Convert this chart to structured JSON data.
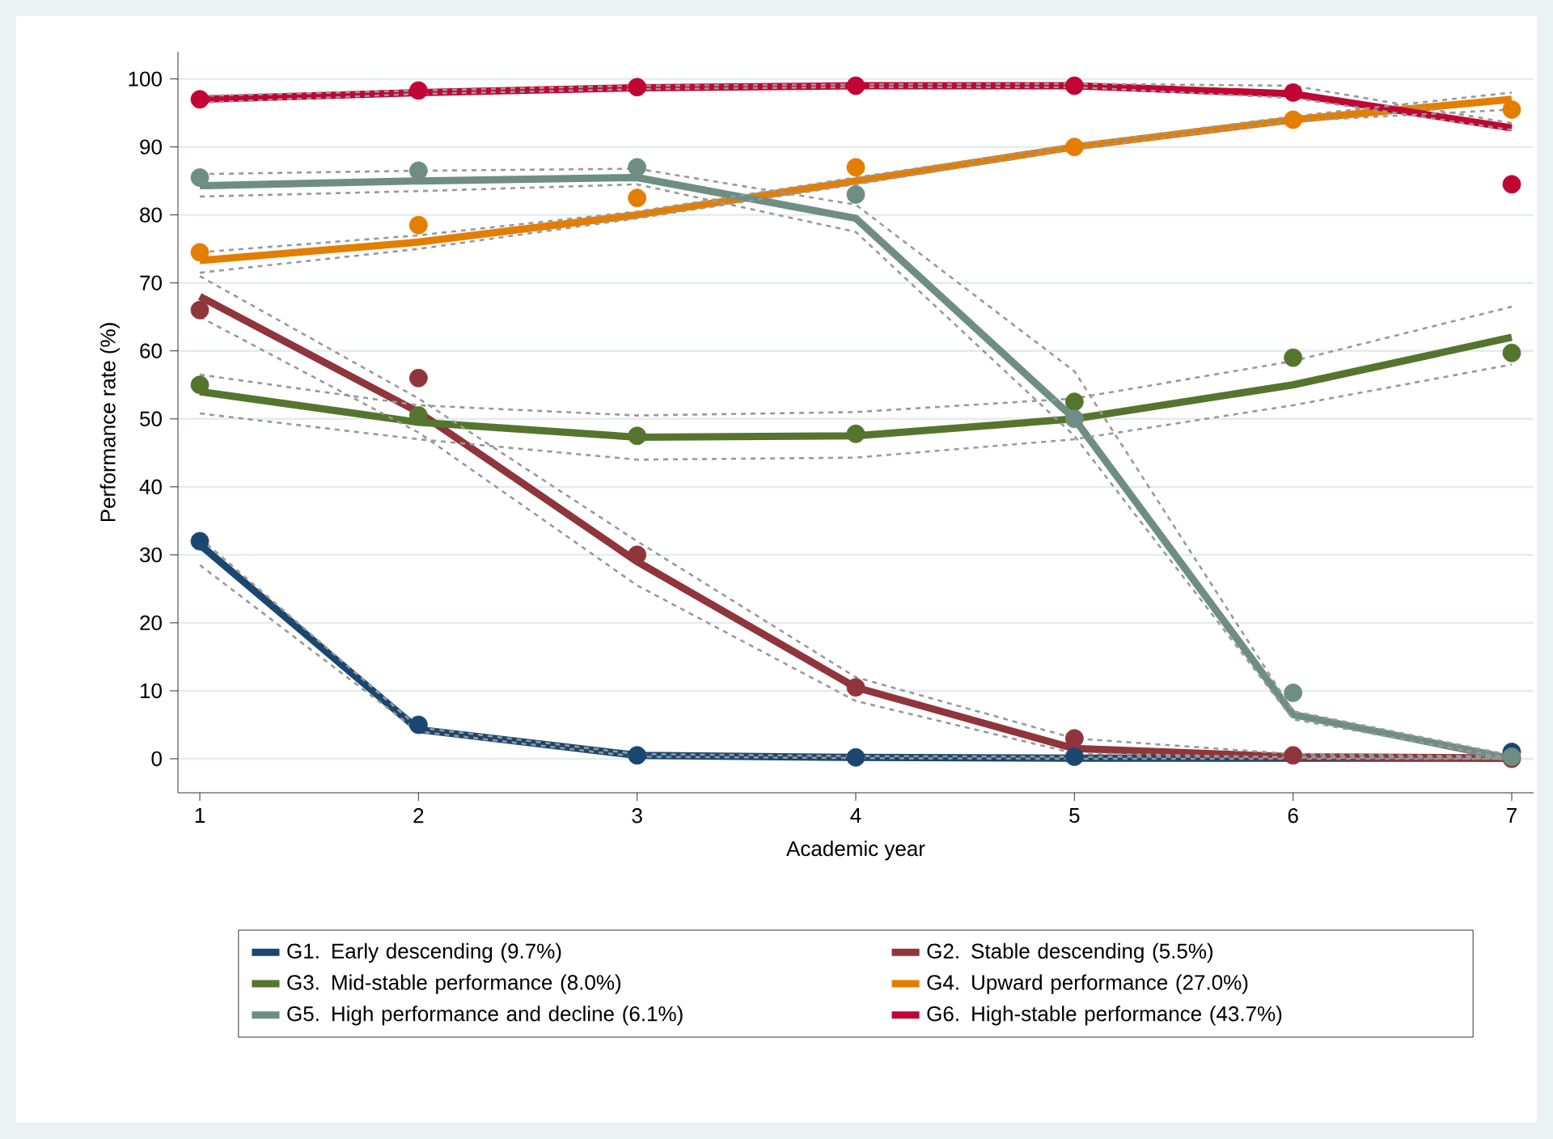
{
  "chart_data": {
    "type": "line",
    "xlabel": "Academic year",
    "ylabel": "Performance rate (%)",
    "x": [
      1,
      2,
      3,
      4,
      5,
      6,
      7
    ],
    "xlim": [
      0.9,
      7.1
    ],
    "xticks": [
      1,
      2,
      3,
      4,
      5,
      6,
      7
    ],
    "ylim": [
      -5,
      104
    ],
    "yticks": [
      0,
      10,
      20,
      30,
      40,
      50,
      60,
      70,
      80,
      90,
      100
    ],
    "grid": "y",
    "legend": "bottom",
    "series": [
      {
        "type": "scatter",
        "marker": "circle",
        "color": "#1a476f",
        "values": [
          32,
          5,
          0.5,
          0.2,
          0.3,
          null,
          1
        ]
      },
      {
        "type": "scatter",
        "marker": "circle",
        "color": "#90353b",
        "values": [
          66,
          56,
          30,
          10.5,
          3,
          0.5,
          0
        ]
      },
      {
        "type": "scatter",
        "marker": "circle",
        "color": "#55752f",
        "values": [
          55,
          50.5,
          47.5,
          47.8,
          52.5,
          59,
          59.7
        ]
      },
      {
        "type": "scatter",
        "marker": "circle",
        "color": "#e37e00",
        "values": [
          74.5,
          78.5,
          82.5,
          87,
          90,
          94,
          95.5
        ]
      },
      {
        "type": "scatter",
        "marker": "circle",
        "color": "#6e8e84",
        "values": [
          85.5,
          86.5,
          87,
          83,
          50,
          9.7,
          0.3
        ]
      },
      {
        "type": "scatter",
        "marker": "circle",
        "color": "#c10534",
        "values": [
          97,
          98.3,
          98.8,
          99,
          99,
          98,
          84.5
        ]
      },
      {
        "name": "G1. Early descending (9.7%)",
        "color": "#1a476f",
        "values": [
          31.5,
          4.3,
          0.5,
          0.2,
          0.1,
          0.1,
          0.1
        ]
      },
      {
        "name": "G2. Stable descending (5.5%)",
        "color": "#90353b",
        "values": [
          68,
          51,
          29,
          10.5,
          1.5,
          0.3,
          0.1
        ]
      },
      {
        "name": "G3. Mid-stable performance (8.0%)",
        "color": "#55752f",
        "values": [
          54,
          49.5,
          47.3,
          47.5,
          50,
          55,
          62
        ]
      },
      {
        "name": "G4. Upward performance (27.0%)",
        "color": "#e37e00",
        "values": [
          73.3,
          76,
          80,
          85,
          90,
          94,
          97
        ]
      },
      {
        "name": "G5. High performance and decline (6.1%)",
        "color": "#6e8e84",
        "values": [
          84.3,
          85,
          85.5,
          79.5,
          50,
          6.5,
          0
        ]
      },
      {
        "name": "G6. High-stable performance (43.7%)",
        "color": "#c10534",
        "values": [
          97,
          98,
          98.7,
          99,
          99,
          97.8,
          92.8
        ]
      },
      {
        "line_style": "dashed",
        "color": "#999999",
        "values": [
          28.5,
          4,
          0.3,
          0.1,
          0,
          0,
          0
        ]
      },
      {
        "line_style": "dashed",
        "color": "#999999",
        "values": [
          32.5,
          4.6,
          0.7,
          0.4,
          0.3,
          0.3,
          0.3
        ]
      },
      {
        "line_style": "dashed",
        "color": "#999999",
        "values": [
          65,
          48,
          25.5,
          8.5,
          0.8,
          0.2,
          0
        ]
      },
      {
        "line_style": "dashed",
        "color": "#999999",
        "values": [
          71,
          53,
          32,
          12,
          3,
          0.7,
          0.3
        ]
      },
      {
        "line_style": "dashed",
        "color": "#999999",
        "values": [
          50.8,
          47,
          44,
          44.3,
          47,
          52,
          58
        ]
      },
      {
        "line_style": "dashed",
        "color": "#999999",
        "values": [
          56.5,
          52,
          50.5,
          51,
          53,
          58.5,
          66.5
        ]
      },
      {
        "line_style": "dashed",
        "color": "#999999",
        "values": [
          71.5,
          75,
          79.5,
          84.5,
          89.7,
          93.8,
          95.5
        ]
      },
      {
        "line_style": "dashed",
        "color": "#999999",
        "values": [
          74.5,
          77,
          80.5,
          85.5,
          90.3,
          94.5,
          98
        ]
      },
      {
        "line_style": "dashed",
        "color": "#999999",
        "values": [
          82.7,
          83.5,
          84.5,
          77.5,
          47.5,
          5.8,
          0
        ]
      },
      {
        "line_style": "dashed",
        "color": "#999999",
        "values": [
          86,
          86.5,
          86.8,
          81.5,
          57,
          7,
          0.5
        ]
      },
      {
        "line_style": "dashed",
        "color": "#999999",
        "values": [
          96.5,
          97.8,
          98.5,
          98.8,
          98.8,
          97.2,
          92.5
        ]
      },
      {
        "line_style": "dashed",
        "color": "#999999",
        "values": [
          97.5,
          98.3,
          99,
          99.2,
          99.3,
          99,
          93.5
        ]
      }
    ]
  }
}
